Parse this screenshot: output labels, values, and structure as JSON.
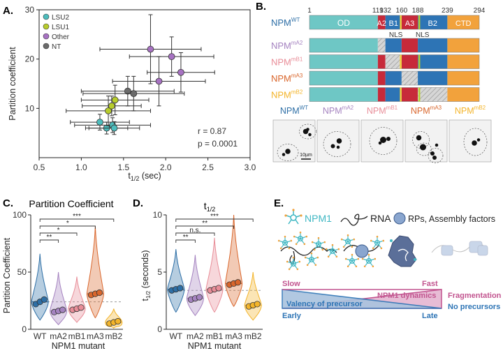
{
  "panels": {
    "a": "A.",
    "b": "B.",
    "c": "C.",
    "d": "D.",
    "e": "E."
  },
  "colors": {
    "lsu2": "#4dbdbd",
    "lsu1": "#b7cc2c",
    "other": "#a772c2",
    "nt": "#6b6b6b",
    "wt": "#2e6fa6",
    "ma2": "#a583c0",
    "mb1": "#e88d98",
    "ma3": "#d9662c",
    "mb2": "#f3b42a",
    "od": "#6ec7c5",
    "a2": "#c72a3a",
    "b1": "#2d74b5",
    "ctd": "#f2a23c",
    "hatch": "#bbbbbb",
    "dynamics": "#c2548f",
    "valency": "#2d74b5"
  },
  "chart_data": [
    {
      "panel": "A",
      "type": "scatter",
      "xlabel": "t1/2 (sec)",
      "ylabel": "Partition coefficient",
      "xlim": [
        0.5,
        3.0
      ],
      "ylim": [
        0,
        30
      ],
      "xticks": [
        "0.5",
        "1.0",
        "1.5",
        "2.0",
        "2.5",
        "3.0"
      ],
      "yticks": [
        "10",
        "20",
        "30"
      ],
      "legend": [
        "LSU2",
        "LSU1",
        "Other",
        "NT"
      ],
      "annotation_r": "r = 0.87",
      "annotation_p": "p = 0.0001",
      "series": [
        {
          "name": "LSU2",
          "points": [
            {
              "x": 1.22,
              "y": 7.2,
              "xe": 0.35,
              "ye": 1.6
            },
            {
              "x": 1.3,
              "y": 6.0,
              "xe": 0.25,
              "ye": 1.2
            },
            {
              "x": 1.37,
              "y": 6.6,
              "xe": 0.45,
              "ye": 1.5
            },
            {
              "x": 1.39,
              "y": 6.0,
              "xe": 0.3,
              "ye": 1.3
            }
          ]
        },
        {
          "name": "LSU1",
          "points": [
            {
              "x": 1.32,
              "y": 9.5,
              "xe": 0.5,
              "ye": 3.0
            },
            {
              "x": 1.36,
              "y": 10.5,
              "xe": 0.35,
              "ye": 2.0
            },
            {
              "x": 1.4,
              "y": 11.7,
              "xe": 0.4,
              "ye": 3.0
            }
          ]
        },
        {
          "name": "Other",
          "points": [
            {
              "x": 1.82,
              "y": 22.0,
              "xe": 0.6,
              "ye": 7.0
            },
            {
              "x": 2.07,
              "y": 20.5,
              "xe": 0.5,
              "ye": 4.0
            },
            {
              "x": 2.18,
              "y": 17.3,
              "xe": 0.4,
              "ye": 4.0
            },
            {
              "x": 1.92,
              "y": 15.5,
              "xe": 0.55,
              "ye": 5.0
            }
          ]
        },
        {
          "name": "NT",
          "points": [
            {
              "x": 1.55,
              "y": 13.5,
              "xe": 0.55,
              "ye": 3.0
            },
            {
              "x": 1.62,
              "y": 13.0,
              "xe": 0.6,
              "ye": 3.5
            }
          ]
        }
      ]
    },
    {
      "panel": "C",
      "type": "violin",
      "title": "Partition Coefficient",
      "xlabel": "NPM1 mutant",
      "ylabel": "Partition Coefficient",
      "ylim": [
        0,
        100
      ],
      "yticks": [
        "0",
        "50",
        "100"
      ],
      "categories": [
        "WT",
        "mA2",
        "mB1",
        "mA3",
        "mB2"
      ],
      "ref_line": 24,
      "reps": [
        [
          22,
          24,
          26
        ],
        [
          15,
          16,
          17
        ],
        [
          17,
          18,
          19
        ],
        [
          30,
          31,
          32
        ],
        [
          5,
          6,
          7
        ]
      ],
      "ranges": [
        [
          8,
          66
        ],
        [
          4,
          50
        ],
        [
          6,
          46
        ],
        [
          10,
          90
        ],
        [
          1,
          18
        ]
      ],
      "medians": [
        24,
        16,
        18,
        31,
        6
      ],
      "significance": [
        {
          "from": "WT",
          "to": "mA2",
          "label": "**"
        },
        {
          "from": "WT",
          "to": "mB1",
          "label": "*"
        },
        {
          "from": "WT",
          "to": "mA3",
          "label": "*"
        },
        {
          "from": "WT",
          "to": "mB2",
          "label": "***"
        }
      ]
    },
    {
      "panel": "D",
      "type": "violin",
      "title": "t1/2",
      "xlabel": "NPM1 mutant",
      "ylabel": "t1/2 (seconds)",
      "ylim": [
        0,
        10
      ],
      "yticks": [
        "0",
        "5",
        "10"
      ],
      "categories": [
        "WT",
        "mA2",
        "mB1",
        "mA3",
        "mB2"
      ],
      "ref_line": 3.4,
      "reps": [
        [
          3.4,
          3.5,
          3.6
        ],
        [
          2.6,
          2.7,
          2.8
        ],
        [
          3.4,
          3.5,
          3.6
        ],
        [
          3.9,
          4.0,
          4.1
        ],
        [
          2.0,
          2.1,
          2.2
        ]
      ],
      "ranges": [
        [
          1.5,
          7.0
        ],
        [
          1.2,
          6.5
        ],
        [
          1.5,
          8.0
        ],
        [
          2.0,
          10.0
        ],
        [
          0.8,
          5.0
        ]
      ],
      "medians": [
        3.5,
        2.7,
        3.5,
        4.0,
        2.1
      ],
      "significance": [
        {
          "from": "WT",
          "to": "mA2",
          "label": "**"
        },
        {
          "from": "WT",
          "to": "mB1",
          "label": "n.s."
        },
        {
          "from": "WT",
          "to": "mA3",
          "label": "**"
        },
        {
          "from": "WT",
          "to": "mB2",
          "label": "***"
        }
      ]
    }
  ],
  "panel_b": {
    "numbers": [
      "1",
      "119",
      "132",
      "160",
      "188",
      "239",
      "294"
    ],
    "wt_label": "NPM",
    "wt_sup": "WT",
    "domains": [
      "OD",
      "A2",
      "B1",
      "A3",
      "B2",
      "CTD"
    ],
    "nls": [
      "NLS",
      "NLS"
    ],
    "mutants": [
      {
        "name": "NPM",
        "sup": "mA2"
      },
      {
        "name": "NPM",
        "sup": "mB1"
      },
      {
        "name": "NPM",
        "sup": "mA3"
      },
      {
        "name": "NPM",
        "sup": "mB2"
      }
    ],
    "image_labels": [
      {
        "name": "NPM",
        "sup": "WT"
      },
      {
        "name": "NPM",
        "sup": "mA2"
      },
      {
        "name": "NPM",
        "sup": "mB1"
      },
      {
        "name": "NPM",
        "sup": "mA3"
      },
      {
        "name": "NPM",
        "sup": "mB2"
      }
    ],
    "scale_bar": "10µm"
  },
  "panel_e": {
    "npm1": "NPM1",
    "rna": "RNA",
    "rps": "RPs, Assembly factors",
    "slow": "Slow",
    "fast": "Fast",
    "dynamics": "NPM1 dynamics",
    "valency": "Valency of precursor",
    "early": "Early",
    "late": "Late",
    "fragmentation": "Fragmentation",
    "no_precursors": "No precursors"
  }
}
